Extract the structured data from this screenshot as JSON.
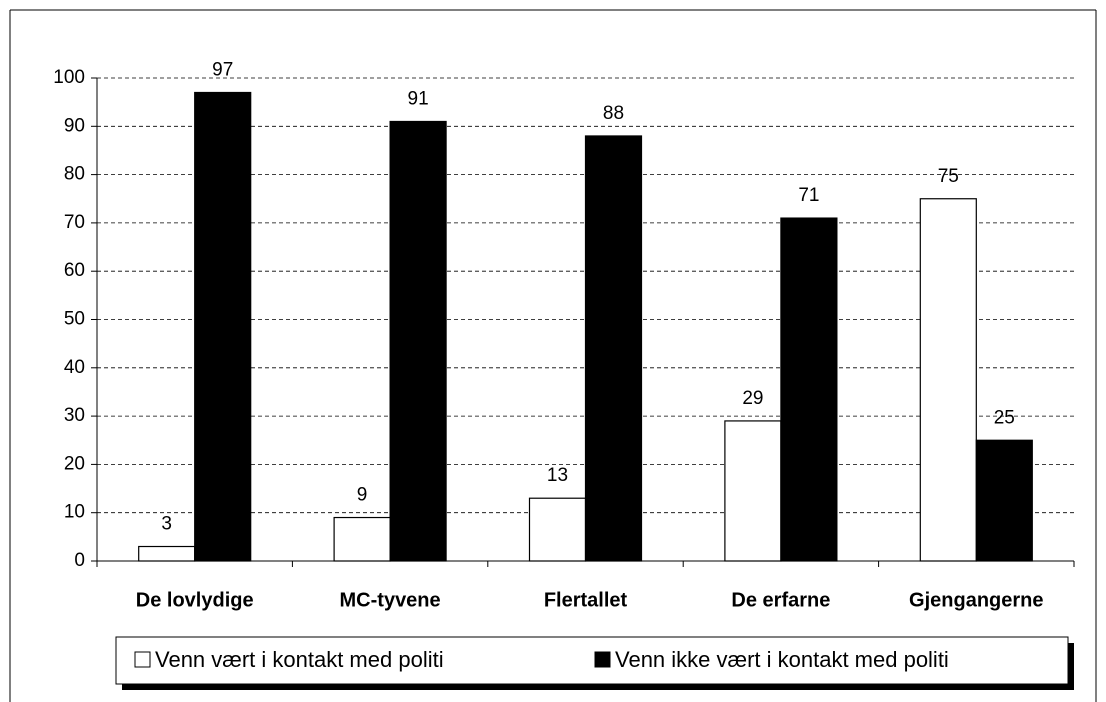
{
  "chart_data": {
    "type": "bar",
    "categories": [
      "De lovlydige",
      "MC-tyvene",
      "Flertallet",
      "De erfarne",
      "Gjengangerne"
    ],
    "series": [
      {
        "name": "Venn vært i kontakt med politi",
        "color": "#ffffff",
        "values": [
          3,
          9,
          13,
          29,
          75
        ]
      },
      {
        "name": "Venn ikke vært i kontakt med politi",
        "color": "#000000",
        "values": [
          97,
          91,
          88,
          71,
          25
        ]
      }
    ],
    "ylim": [
      0,
      100
    ],
    "yticks": [
      0,
      10,
      20,
      30,
      40,
      50,
      60,
      70,
      80,
      90,
      100
    ],
    "grid": true,
    "legend": "bottom"
  }
}
